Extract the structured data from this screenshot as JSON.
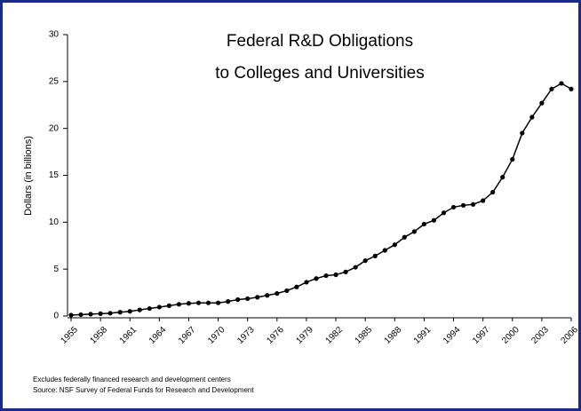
{
  "chart_data": {
    "type": "line",
    "title": "Federal R&D Obligations",
    "subtitle": "to Colleges and Universities",
    "ylabel": "Dollars (in billions)",
    "notes": [
      "Excludes federally financed research and development centers",
      "Source: NSF Survey of Federal Funds for Research and Development"
    ],
    "x": [
      1955,
      1956,
      1957,
      1958,
      1959,
      1960,
      1961,
      1962,
      1963,
      1964,
      1965,
      1966,
      1967,
      1968,
      1969,
      1970,
      1971,
      1972,
      1973,
      1974,
      1975,
      1976,
      1977,
      1978,
      1979,
      1980,
      1981,
      1982,
      1983,
      1984,
      1985,
      1986,
      1987,
      1988,
      1989,
      1990,
      1991,
      1992,
      1993,
      1994,
      1995,
      1996,
      1997,
      1998,
      1999,
      2000,
      2001,
      2002,
      2003,
      2004,
      2005,
      2006
    ],
    "series": [
      {
        "color": "#000000",
        "values": [
          0.1,
          0.15,
          0.2,
          0.25,
          0.3,
          0.4,
          0.5,
          0.65,
          0.8,
          0.95,
          1.1,
          1.25,
          1.35,
          1.4,
          1.4,
          1.4,
          1.55,
          1.75,
          1.85,
          2.0,
          2.2,
          2.4,
          2.7,
          3.1,
          3.6,
          4.0,
          4.3,
          4.4,
          4.7,
          5.2,
          5.9,
          6.4,
          7.0,
          7.6,
          8.4,
          9.0,
          9.8,
          10.2,
          11.0,
          11.6,
          11.8,
          11.9,
          12.3,
          13.2,
          14.8,
          16.7,
          19.5,
          21.2,
          22.7,
          24.2,
          24.8,
          24.2
        ]
      }
    ],
    "xlim": [
      1955,
      2006
    ],
    "xticks": [
      1955,
      1958,
      1961,
      1964,
      1967,
      1970,
      1973,
      1976,
      1979,
      1982,
      1985,
      1988,
      1991,
      1994,
      1997,
      2000,
      2003,
      2006
    ],
    "ylim": [
      0,
      30
    ],
    "yticks": [
      0,
      5,
      10,
      15,
      20,
      25,
      30
    ]
  }
}
